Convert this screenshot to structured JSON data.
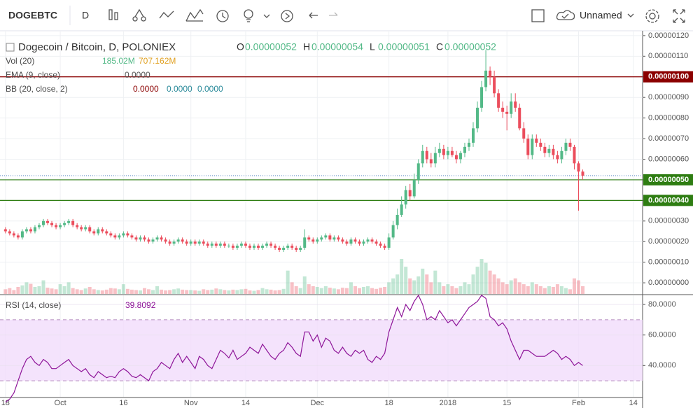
{
  "toolbar": {
    "symbol": "DOGEBTC",
    "interval": "D",
    "layout": "Unnamed"
  },
  "chart_data": [
    {
      "type": "candlestick",
      "title": "Dogecoin / Bitcoin, D, POLONIEX",
      "ohlc_legend": [
        {
          "key": "O",
          "text": "0.00000052"
        },
        {
          "key": "H",
          "text": "0.00000054"
        },
        {
          "key": "L",
          "text": "0.00000051"
        },
        {
          "key": "C",
          "text": "0.00000052"
        }
      ],
      "indicators": [
        {
          "name": "Vol (20)",
          "texts": [
            "185.02M",
            "707.162M"
          ]
        },
        {
          "name": "EMA (9, close)",
          "texts": [
            "0.0000"
          ]
        },
        {
          "name": "BB (20, close, 2)",
          "texts": [
            "0.0000",
            "0.0000",
            "0.0000"
          ]
        }
      ],
      "up_color": "#53b987",
      "down_color": "#eb4d5c",
      "open": [
        2.6e-07,
        2.5e-07,
        2.4e-07,
        2.3e-07,
        2.2e-07,
        2.5e-07,
        2.6e-07,
        2.5e-07,
        2.7e-07,
        2.8e-07,
        3e-07,
        2.9e-07,
        2.8e-07,
        2.7e-07,
        2.8e-07,
        2.9e-07,
        3e-07,
        2.8e-07,
        2.7e-07,
        2.6e-07,
        2.7e-07,
        2.5e-07,
        2.4e-07,
        2.6e-07,
        2.5e-07,
        2.4e-07,
        2.3e-07,
        2.2e-07,
        2.3e-07,
        2.4e-07,
        2.3e-07,
        2.2e-07,
        2.1e-07,
        2.2e-07,
        2.1e-07,
        2e-07,
        2.1e-07,
        2.2e-07,
        2.1e-07,
        2e-07,
        1.9e-07,
        2e-07,
        2.1e-07,
        2e-07,
        1.9e-07,
        2e-07,
        1.9e-07,
        2e-07,
        1.9e-07,
        1.8e-07,
        1.9e-07,
        1.8e-07,
        1.9e-07,
        1.8e-07,
        1.8e-07,
        1.7e-07,
        1.8e-07,
        1.9e-07,
        1.8e-07,
        1.7e-07,
        1.8e-07,
        1.7e-07,
        1.8e-07,
        1.9e-07,
        1.8e-07,
        1.7e-07,
        1.6e-07,
        1.7e-07,
        1.8e-07,
        1.7e-07,
        1.6e-07,
        1.7e-07,
        2.2e-07,
        2.1e-07,
        2e-07,
        2.1e-07,
        2.2e-07,
        2.3e-07,
        2.1e-07,
        2.2e-07,
        2.1e-07,
        2e-07,
        1.9e-07,
        2.1e-07,
        2e-07,
        1.9e-07,
        2e-07,
        2.1e-07,
        2e-07,
        1.9e-07,
        1.8e-07,
        1.7e-07,
        2.2e-07,
        2.8e-07,
        3.3e-07,
        3.8e-07,
        4.5e-07,
        4.2e-07,
        5e-07,
        5.8e-07,
        6.4e-07,
        6e-07,
        5.8e-07,
        6.3e-07,
        6.5e-07,
        6.2e-07,
        6.4e-07,
        6.2e-07,
        6e-07,
        6.3e-07,
        6.6e-07,
        6.8e-07,
        7.5e-07,
        8.5e-07,
        9.5e-07,
        1.03e-06,
        1e-06,
        9.2e-07,
        8.5e-07,
        8.3e-07,
        8.2e-07,
        8.8e-07,
        8.5e-07,
        7.5e-07,
        7e-07,
        6.2e-07,
        7e-07,
        6.8e-07,
        6.6e-07,
        6.3e-07,
        6.5e-07,
        6.2e-07,
        6e-07,
        6.4e-07,
        6.8e-07,
        6.6e-07,
        5.8e-07,
        5.4e-07
      ],
      "high": [
        2.7e-07,
        2.6e-07,
        2.5e-07,
        2.4e-07,
        2.6e-07,
        2.7e-07,
        2.7e-07,
        2.8e-07,
        2.9e-07,
        3.1e-07,
        3.1e-07,
        3e-07,
        2.9e-07,
        2.9e-07,
        3e-07,
        3.1e-07,
        3.1e-07,
        2.9e-07,
        2.8e-07,
        2.8e-07,
        2.8e-07,
        2.6e-07,
        2.7e-07,
        2.7e-07,
        2.6e-07,
        2.5e-07,
        2.4e-07,
        2.4e-07,
        2.5e-07,
        2.5e-07,
        2.4e-07,
        2.3e-07,
        2.3e-07,
        2.3e-07,
        2.2e-07,
        2.2e-07,
        2.3e-07,
        2.3e-07,
        2.2e-07,
        2.1e-07,
        2.1e-07,
        2.2e-07,
        2.2e-07,
        2.1e-07,
        2.1e-07,
        2.1e-07,
        2.1e-07,
        2.1e-07,
        2e-07,
        2e-07,
        2e-07,
        2e-07,
        2e-07,
        1.9e-07,
        1.9e-07,
        1.9e-07,
        2e-07,
        2e-07,
        1.9e-07,
        1.9e-07,
        1.9e-07,
        1.9e-07,
        2e-07,
        2e-07,
        1.9e-07,
        1.8e-07,
        1.8e-07,
        1.9e-07,
        1.9e-07,
        1.8e-07,
        1.8e-07,
        2.6e-07,
        2.3e-07,
        2.2e-07,
        2.2e-07,
        2.3e-07,
        2.4e-07,
        2.4e-07,
        2.3e-07,
        2.3e-07,
        2.2e-07,
        2.1e-07,
        2.2e-07,
        2.2e-07,
        2.1e-07,
        2.1e-07,
        2.2e-07,
        2.2e-07,
        2.1e-07,
        2e-07,
        1.9e-07,
        2.4e-07,
        3e-07,
        3.6e-07,
        4.2e-07,
        4.7e-07,
        4.8e-07,
        5.3e-07,
        6e-07,
        6.7e-07,
        6.6e-07,
        6.3e-07,
        6.6e-07,
        6.8e-07,
        6.7e-07,
        6.6e-07,
        6.6e-07,
        6.4e-07,
        6.4e-07,
        6.8e-07,
        7e-07,
        7.8e-07,
        8.8e-07,
        9.8e-07,
        1.13e-06,
        1.05e-06,
        1.03e-06,
        9.4e-07,
        8.8e-07,
        8.6e-07,
        9.2e-07,
        9.2e-07,
        8.7e-07,
        7.8e-07,
        7.2e-07,
        7.2e-07,
        7.2e-07,
        7e-07,
        6.8e-07,
        6.7e-07,
        6.7e-07,
        6.4e-07,
        6.6e-07,
        7e-07,
        7e-07,
        6.7e-07,
        5.9e-07,
        5.5e-07
      ],
      "low": [
        2.4e-07,
        2.3e-07,
        2.2e-07,
        2.1e-07,
        2.1e-07,
        2.4e-07,
        2.4e-07,
        2.4e-07,
        2.6e-07,
        2.7e-07,
        2.8e-07,
        2.7e-07,
        2.6e-07,
        2.6e-07,
        2.7e-07,
        2.8e-07,
        2.7e-07,
        2.6e-07,
        2.5e-07,
        2.5e-07,
        2.4e-07,
        2.3e-07,
        2.3e-07,
        2.4e-07,
        2.3e-07,
        2.2e-07,
        2.1e-07,
        2.1e-07,
        2.2e-07,
        2.2e-07,
        2.1e-07,
        2e-07,
        2e-07,
        2e-07,
        1.9e-07,
        1.9e-07,
        2e-07,
        2e-07,
        1.9e-07,
        1.8e-07,
        1.8e-07,
        1.9e-07,
        1.9e-07,
        1.8e-07,
        1.8e-07,
        1.8e-07,
        1.8e-07,
        1.8e-07,
        1.7e-07,
        1.7e-07,
        1.7e-07,
        1.7e-07,
        1.7e-07,
        1.7e-07,
        1.6e-07,
        1.6e-07,
        1.7e-07,
        1.7e-07,
        1.6e-07,
        1.6e-07,
        1.6e-07,
        1.6e-07,
        1.7e-07,
        1.7e-07,
        1.6e-07,
        1.5e-07,
        1.5e-07,
        1.6e-07,
        1.6e-07,
        1.5e-07,
        1.5e-07,
        1.6e-07,
        2e-07,
        1.9e-07,
        1.9e-07,
        2e-07,
        2.1e-07,
        2e-07,
        2e-07,
        2e-07,
        1.9e-07,
        1.8e-07,
        1.8e-07,
        1.9e-07,
        1.8e-07,
        1.8e-07,
        1.9e-07,
        1.9e-07,
        1.8e-07,
        1.7e-07,
        1.6e-07,
        1.6e-07,
        2.1e-07,
        2.6e-07,
        3.2e-07,
        3.6e-07,
        4e-07,
        4.1e-07,
        4.8e-07,
        5.6e-07,
        5.8e-07,
        5.6e-07,
        5.6e-07,
        6.1e-07,
        6e-07,
        6e-07,
        6.1e-07,
        5.8e-07,
        5.8e-07,
        6.1e-07,
        6.4e-07,
        6.6e-07,
        7.3e-07,
        8.3e-07,
        9.3e-07,
        9.6e-07,
        9e-07,
        8.3e-07,
        8e-07,
        7.4e-07,
        8e-07,
        8.3e-07,
        7.4e-07,
        6.8e-07,
        6e-07,
        6e-07,
        6.6e-07,
        6.4e-07,
        6.1e-07,
        6.1e-07,
        6e-07,
        5.8e-07,
        5.8e-07,
        6.2e-07,
        6.4e-07,
        5.5e-07,
        3.5e-07,
        5e-07
      ],
      "close": [
        2.5e-07,
        2.4e-07,
        2.3e-07,
        2.2e-07,
        2.5e-07,
        2.6e-07,
        2.5e-07,
        2.7e-07,
        2.8e-07,
        3e-07,
        2.9e-07,
        2.8e-07,
        2.7e-07,
        2.8e-07,
        2.9e-07,
        3e-07,
        2.8e-07,
        2.7e-07,
        2.6e-07,
        2.7e-07,
        2.5e-07,
        2.4e-07,
        2.6e-07,
        2.5e-07,
        2.4e-07,
        2.3e-07,
        2.2e-07,
        2.3e-07,
        2.4e-07,
        2.3e-07,
        2.2e-07,
        2.1e-07,
        2.2e-07,
        2.1e-07,
        2e-07,
        2.1e-07,
        2.2e-07,
        2.1e-07,
        2e-07,
        1.9e-07,
        2e-07,
        2.1e-07,
        2e-07,
        1.9e-07,
        2e-07,
        1.9e-07,
        2e-07,
        1.9e-07,
        1.8e-07,
        1.9e-07,
        1.8e-07,
        1.9e-07,
        1.8e-07,
        1.8e-07,
        1.7e-07,
        1.8e-07,
        1.9e-07,
        1.8e-07,
        1.7e-07,
        1.8e-07,
        1.7e-07,
        1.8e-07,
        1.9e-07,
        1.8e-07,
        1.7e-07,
        1.6e-07,
        1.7e-07,
        1.8e-07,
        1.7e-07,
        1.6e-07,
        1.7e-07,
        2.2e-07,
        2.1e-07,
        2e-07,
        2.1e-07,
        2.2e-07,
        2.3e-07,
        2.1e-07,
        2.2e-07,
        2.1e-07,
        2e-07,
        1.9e-07,
        2.1e-07,
        2e-07,
        1.9e-07,
        2e-07,
        2.1e-07,
        2e-07,
        1.9e-07,
        1.8e-07,
        1.7e-07,
        2.2e-07,
        2.8e-07,
        3.3e-07,
        3.8e-07,
        4.5e-07,
        4.2e-07,
        5e-07,
        5.8e-07,
        6.4e-07,
        6e-07,
        5.8e-07,
        6.3e-07,
        6.5e-07,
        6.2e-07,
        6.4e-07,
        6.2e-07,
        6e-07,
        6.3e-07,
        6.6e-07,
        6.8e-07,
        7.5e-07,
        8.5e-07,
        9.5e-07,
        1.03e-06,
        1e-06,
        9.2e-07,
        8.5e-07,
        8.3e-07,
        8.2e-07,
        8.8e-07,
        8.5e-07,
        7.5e-07,
        7e-07,
        6.2e-07,
        7e-07,
        6.8e-07,
        6.6e-07,
        6.3e-07,
        6.5e-07,
        6.2e-07,
        6e-07,
        6.4e-07,
        6.8e-07,
        6.6e-07,
        5.8e-07,
        5.4e-07,
        5.2e-07
      ],
      "volume": [
        120,
        150,
        100,
        180,
        220,
        300,
        260,
        180,
        200,
        350,
        160,
        140,
        120,
        250,
        200,
        300,
        150,
        120,
        100,
        140,
        180,
        120,
        100,
        90,
        110,
        150,
        140,
        120,
        250,
        130,
        110,
        100,
        90,
        150,
        120,
        100,
        200,
        110,
        90,
        100,
        120,
        140,
        110,
        100,
        100,
        90,
        80,
        120,
        100,
        110,
        140,
        120,
        100,
        90,
        110,
        100,
        120,
        130,
        90,
        80,
        100,
        150,
        120,
        110,
        90,
        100,
        130,
        600,
        300,
        200,
        150,
        450,
        250,
        200,
        180,
        150,
        200,
        160,
        140,
        120,
        160,
        150,
        300,
        200,
        150,
        180,
        200,
        150,
        130,
        160,
        180,
        300,
        400,
        500,
        900,
        700,
        400,
        350,
        450,
        650,
        500,
        300,
        600,
        300,
        200,
        250,
        200,
        150,
        200,
        300,
        250,
        500,
        700,
        900,
        800,
        600,
        500,
        400,
        300,
        250,
        350,
        400,
        300,
        250,
        200,
        300,
        250,
        200,
        150,
        200,
        180,
        250,
        200,
        150,
        120,
        400,
        350,
        200
      ],
      "ylim": [
        -5.4e-08,
        1.22e-06
      ],
      "yticks": [
        {
          "value": 0,
          "label": "0.00000000"
        },
        {
          "value": 1e-07,
          "label": "0.00000010"
        },
        {
          "value": 2e-07,
          "label": "0.00000020"
        },
        {
          "value": 3e-07,
          "label": "0.00000030"
        },
        {
          "value": 4e-07,
          "label": "0.00000040"
        },
        {
          "value": 5e-07,
          "label": "0.00000050"
        },
        {
          "value": 6e-07,
          "label": "0.00000060"
        },
        {
          "value": 7e-07,
          "label": "0.00000070"
        },
        {
          "value": 8e-07,
          "label": "0.00000080"
        },
        {
          "value": 9e-07,
          "label": "0.00000090"
        },
        {
          "value": 1e-06,
          "label": "0.00000100"
        },
        {
          "value": 1.1e-06,
          "label": "0.00000110"
        },
        {
          "value": 1.2e-06,
          "label": "0.00000120"
        }
      ],
      "hlines": [
        {
          "value": 1e-06,
          "label": "0.00000100",
          "color": "#8b0000"
        },
        {
          "value": 5e-07,
          "label": "0.00000050",
          "color": "#2e7d12"
        },
        {
          "value": 4e-07,
          "label": "0.00000040",
          "color": "#2e7d12"
        }
      ],
      "xlim": [
        -1.3,
        151.2
      ],
      "xticks": [
        {
          "value": 0,
          "label": "18"
        },
        {
          "value": 13,
          "label": "Oct"
        },
        {
          "value": 28,
          "label": "16"
        },
        {
          "value": 44,
          "label": "Nov"
        },
        {
          "value": 57,
          "label": "14"
        },
        {
          "value": 74,
          "label": "Dec"
        },
        {
          "value": 91,
          "label": "18"
        },
        {
          "value": 105,
          "label": "2018"
        },
        {
          "value": 119,
          "label": "15"
        },
        {
          "value": 136,
          "label": "Feb"
        },
        {
          "value": 149,
          "label": "14"
        }
      ],
      "grid": true
    },
    {
      "type": "line",
      "title": "RSI (14, close)",
      "value_text": "39.8092",
      "color": "#8e1599",
      "values": [
        16,
        18,
        22,
        30,
        38,
        44,
        46,
        42,
        40,
        44,
        42,
        38,
        38,
        40,
        42,
        44,
        40,
        38,
        36,
        38,
        34,
        32,
        36,
        34,
        32,
        33,
        32,
        36,
        38,
        36,
        33,
        32,
        34,
        32,
        30,
        36,
        38,
        42,
        40,
        38,
        44,
        48,
        42,
        46,
        42,
        38,
        46,
        44,
        40,
        38,
        44,
        50,
        48,
        45,
        50,
        44,
        46,
        48,
        52,
        50,
        48,
        54,
        50,
        46,
        44,
        48,
        50,
        55,
        52,
        48,
        46,
        62,
        62,
        56,
        60,
        52,
        58,
        56,
        50,
        48,
        52,
        48,
        46,
        50,
        48,
        50,
        44,
        42,
        46,
        44,
        48,
        62,
        70,
        78,
        72,
        80,
        76,
        82,
        86,
        80,
        70,
        72,
        70,
        76,
        72,
        68,
        70,
        66,
        70,
        74,
        78,
        80,
        82,
        86,
        84,
        72,
        70,
        66,
        68,
        64,
        56,
        50,
        44,
        50,
        50,
        48,
        46,
        46,
        46,
        48,
        50,
        48,
        44,
        46,
        44,
        40,
        42,
        40
      ],
      "bands": [
        30,
        70
      ],
      "ylim": [
        19.5,
        86
      ],
      "yticks": [
        {
          "value": 40,
          "label": "40.0000"
        },
        {
          "value": 60,
          "label": "60.0000"
        },
        {
          "value": 80,
          "label": "80.0000"
        }
      ],
      "grid": true
    }
  ]
}
